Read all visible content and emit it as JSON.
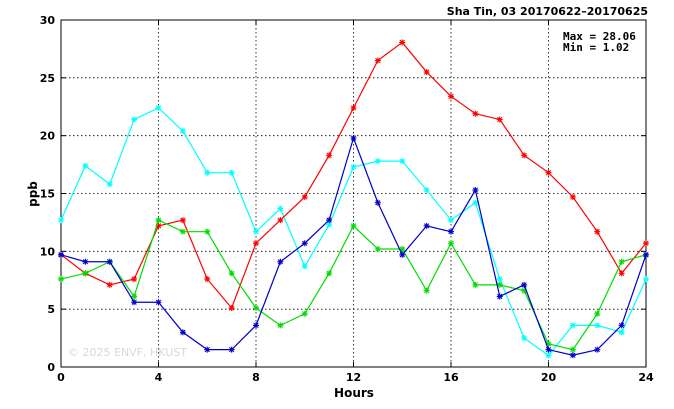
{
  "chart_data": {
    "type": "line",
    "title": "Sha Tin, 03 20170622–20170625",
    "xlabel": "Hours",
    "ylabel": "ppb",
    "xlim": [
      0,
      24
    ],
    "ylim": [
      0,
      30
    ],
    "xticks": [
      0,
      4,
      8,
      12,
      16,
      20,
      24
    ],
    "yticks": [
      0,
      5,
      10,
      15,
      20,
      25,
      30
    ],
    "grid": true,
    "stats": {
      "max_text": "Max = 28.06",
      "min_text": "Min =  1.02"
    },
    "watermark": "© 2025  ENVF, HKUST",
    "x": [
      0,
      1,
      2,
      3,
      4,
      5,
      6,
      7,
      8,
      9,
      10,
      11,
      12,
      13,
      14,
      15,
      16,
      17,
      18,
      19,
      20,
      21,
      22,
      23,
      24
    ],
    "series": [
      {
        "color": "#00ffff",
        "values": [
          12.7,
          17.4,
          15.8,
          21.4,
          22.4,
          20.4,
          16.8,
          16.8,
          11.7,
          13.7,
          8.7,
          12.3,
          17.3,
          17.8,
          17.8,
          15.3,
          12.7,
          14.2,
          7.6,
          2.5,
          1.0,
          3.6,
          3.6,
          3.0,
          7.6
        ]
      },
      {
        "color": "#ff0000",
        "values": [
          9.7,
          8.1,
          7.1,
          7.6,
          12.2,
          12.7,
          7.6,
          5.1,
          10.7,
          12.7,
          14.7,
          18.3,
          22.4,
          26.5,
          28.06,
          25.5,
          23.4,
          21.9,
          21.4,
          18.3,
          16.8,
          14.7,
          11.7,
          8.1,
          10.7
        ]
      },
      {
        "color": "#00dd00",
        "values": [
          7.6,
          8.1,
          9.1,
          6.1,
          12.7,
          11.7,
          11.7,
          8.1,
          5.1,
          3.6,
          4.6,
          8.1,
          12.2,
          10.2,
          10.2,
          6.6,
          10.7,
          7.1,
          7.1,
          6.6,
          2.0,
          1.5,
          4.6,
          9.1,
          9.7
        ]
      },
      {
        "color": "#0000cc",
        "values": [
          9.7,
          9.1,
          9.1,
          5.6,
          5.6,
          3.0,
          1.5,
          1.5,
          3.6,
          9.1,
          10.7,
          12.7,
          19.8,
          14.2,
          9.7,
          12.2,
          11.7,
          15.3,
          6.1,
          7.1,
          1.5,
          1.02,
          1.5,
          3.6,
          9.7
        ]
      }
    ]
  }
}
